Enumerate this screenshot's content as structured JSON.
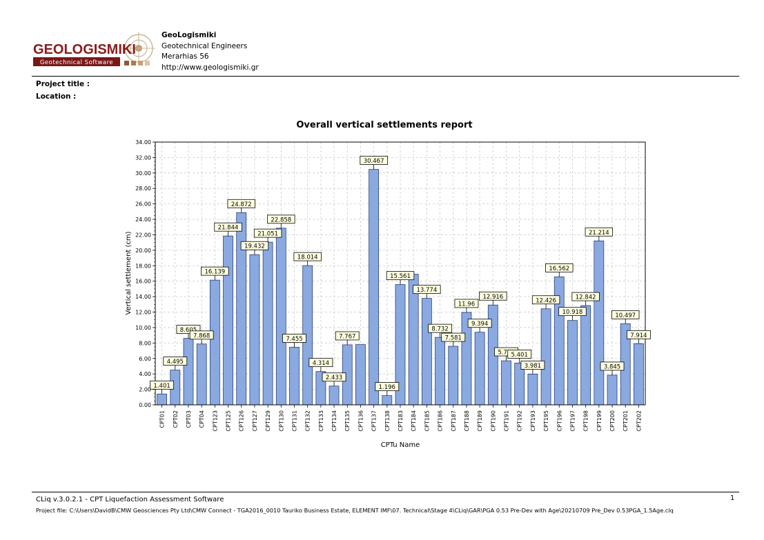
{
  "header": {
    "logo_text": "GEOLOGISMIKI",
    "logo_tagline": "Geotechnical Software",
    "company_name": "GeoLogismiki",
    "company_line2": "Geotechnical Engineers",
    "company_line3": "Merarhias 56",
    "company_url": "http://www.geologismiki.gr"
  },
  "project": {
    "title_label": "Project title :",
    "location_label": "Location :"
  },
  "chart_data": {
    "type": "bar",
    "title": "Overall vertical settlements report",
    "xlabel": "CPTu Name",
    "ylabel": "Vertical settlement (cm)",
    "ylim": [
      0,
      34
    ],
    "ytick_step": 2,
    "grid": true,
    "bar_color": "#8aa9e1",
    "categories": [
      "CPT01",
      "CPT02",
      "CPT03",
      "CPT04",
      "CPT123",
      "CPT125",
      "CPT126",
      "CPT127",
      "CPT129",
      "CPT130",
      "CPT131",
      "CPT132",
      "CPT133",
      "CPT134",
      "CPT135",
      "CPT136",
      "CPT137",
      "CPT138",
      "CPT183",
      "CPT184",
      "CPT185",
      "CPT186",
      "CPT187",
      "CPT188",
      "CPT189",
      "CPT190",
      "CPT191",
      "CPT192",
      "CPT193",
      "CPT195",
      "CPT196",
      "CPT197",
      "CPT198",
      "CPT199",
      "CPT200",
      "CPT201",
      "CPT202"
    ],
    "values": [
      1.401,
      4.495,
      8.605,
      7.868,
      16.139,
      21.844,
      24.872,
      19.432,
      21.051,
      22.858,
      7.455,
      18.014,
      4.314,
      2.433,
      7.767,
      7.8,
      30.467,
      1.196,
      15.561,
      16.9,
      13.774,
      8.732,
      7.581,
      11.96,
      9.394,
      12.916,
      5.703,
      5.401,
      3.981,
      12.426,
      16.562,
      10.918,
      12.842,
      21.214,
      3.845,
      10.497,
      7.914
    ],
    "data_labels": [
      "1.401",
      "4.495",
      "8.605",
      "7.868",
      "16.139",
      "21.844",
      "24.872",
      "19.432",
      "21.051",
      "22.858",
      "7.455",
      "18.014",
      "4.314",
      "2.433",
      "7.767",
      "",
      "30.467",
      "1.196",
      "15.561",
      "",
      "13.774",
      "8.732",
      "7.581",
      "11.96",
      "9.394",
      "12.916",
      "5.703",
      "5.401",
      "3.981",
      "12.426",
      "16.562",
      "10.918",
      "12.842",
      "21.214",
      "3.845",
      "10.497",
      "7.914"
    ]
  },
  "footer": {
    "software": "CLiq v.3.0.2.1 - CPT Liquefaction Assessment Software",
    "project_file": "Project file: C:\\Users\\DavidB\\CMW Geosciences Pty Ltd\\CMW Connect - TGA2016_0010 Tauriko Business Estate, ELEMENT IMF\\07. Technical\\Stage 4\\CLiq\\GAR\\PGA 0.53 Pre-Dev with Age\\20210709 Pre_Dev 0.53PGA_1.5Age.clq",
    "page_number": "1"
  }
}
